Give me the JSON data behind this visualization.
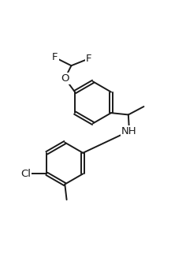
{
  "background_color": "#ffffff",
  "line_color": "#1a1a1a",
  "line_width": 1.4,
  "font_size": 9.5,
  "figsize": [
    2.36,
    3.22
  ],
  "dpi": 100,
  "xlim": [
    0.0,
    1.0
  ],
  "ylim": [
    0.0,
    1.0
  ]
}
